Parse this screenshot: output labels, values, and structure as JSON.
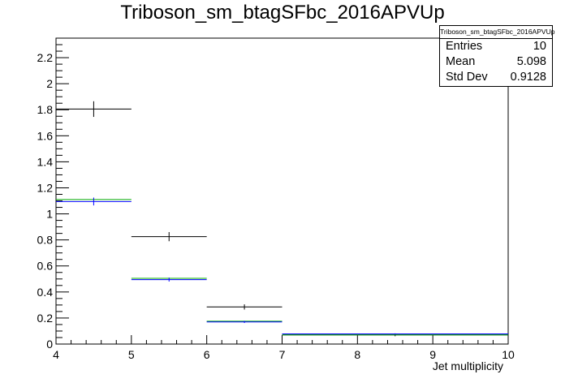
{
  "chart_data": {
    "type": "histogram",
    "title": "Triboson_sm_btagSFbc_2016APVUp",
    "xlabel": "Jet multiplicity",
    "ylabel": "",
    "xlim": [
      4,
      10
    ],
    "ylim": [
      0,
      2.35
    ],
    "xticks": [
      "4",
      "5",
      "6",
      "7",
      "8",
      "9",
      "10"
    ],
    "yticks": [
      "0",
      "0.2",
      "0.4",
      "0.6",
      "0.8",
      "1",
      "1.2",
      "1.4",
      "1.6",
      "1.8",
      "2",
      "2.2"
    ],
    "grid": false,
    "bins": [
      [
        4,
        5
      ],
      [
        5,
        6
      ],
      [
        6,
        7
      ],
      [
        7,
        10
      ]
    ],
    "series": [
      {
        "color": "#000000",
        "values": [
          1.805,
          0.825,
          0.285,
          0.07
        ],
        "errors": [
          0.06,
          0.035,
          0.02,
          0.01
        ]
      },
      {
        "color": "#00aa00",
        "values": [
          1.11,
          0.505,
          0.175,
          0.07
        ],
        "errors": [
          0,
          0,
          0,
          0
        ]
      },
      {
        "color": "#0000ff",
        "values": [
          1.095,
          0.495,
          0.17,
          0.078
        ],
        "errors": [
          0.03,
          0.015,
          0.008,
          0.004
        ]
      }
    ],
    "stats": {
      "name": "Triboson_sm_btagSFbc_2016APVUp",
      "entries_label": "Entries",
      "entries": "10",
      "mean_label": "Mean",
      "mean": "5.098",
      "stddev_label": "Std Dev",
      "stddev": "0.9128"
    }
  }
}
